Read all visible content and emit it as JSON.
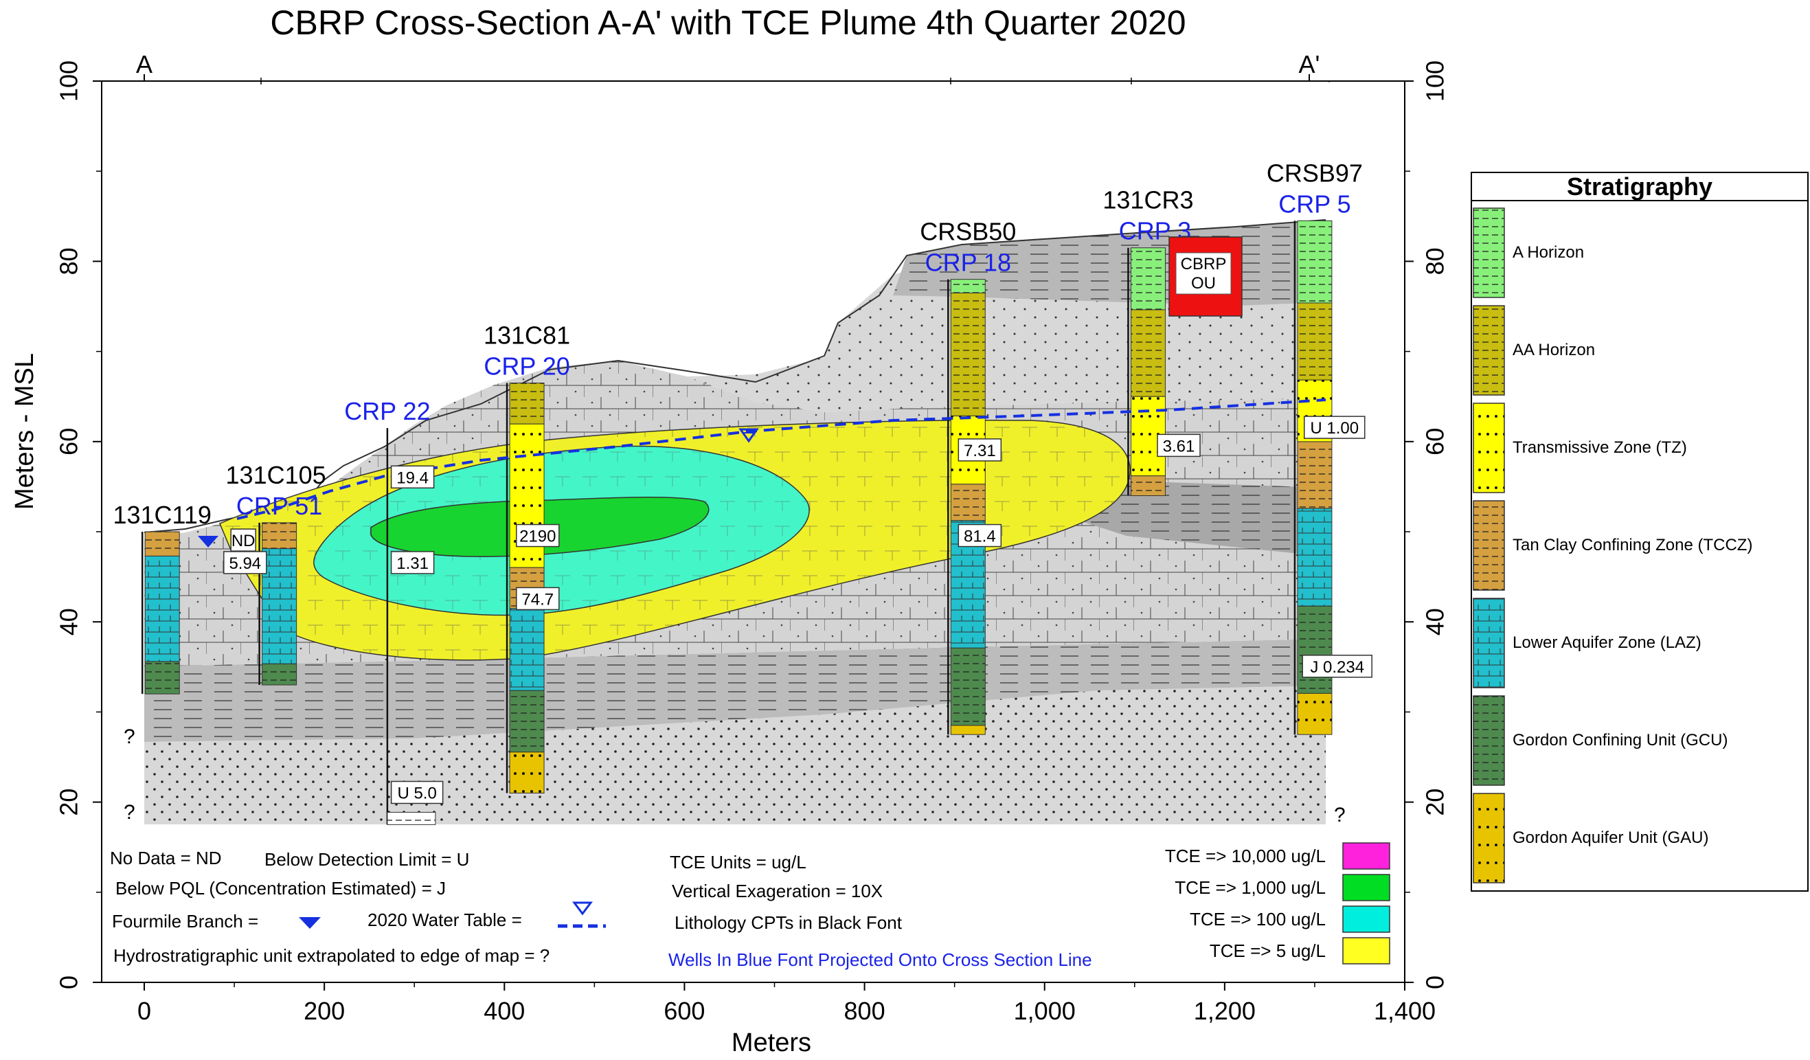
{
  "title": "CBRP Cross-Section A-A' with TCE Plume 4th Quarter 2020",
  "section_ends": {
    "left": "A",
    "right": "A'"
  },
  "axes": {
    "xlabel": "Meters",
    "ylabel": "Meters - MSL",
    "xlim": [
      0,
      1400
    ],
    "ylim": [
      0,
      100
    ],
    "xticks": [
      "0",
      "200",
      "400",
      "600",
      "800",
      "1,000",
      "1,200",
      "1,400"
    ],
    "yticks": [
      "0",
      "20",
      "40",
      "60",
      "80",
      "100"
    ],
    "right_yticks": [
      "0",
      "20",
      "40",
      "60",
      "80",
      "100"
    ]
  },
  "wells": [
    {
      "id": "131C119",
      "name": "131C119",
      "alt": "",
      "x": 20,
      "top": 50,
      "bottom": 32
    },
    {
      "id": "131C105",
      "name": "131C105",
      "alt": "CRP 51",
      "x": 150,
      "top": 51,
      "bottom": 33
    },
    {
      "id": "CRP22",
      "name": "",
      "alt": "CRP 22",
      "x": 270,
      "top": 61.5,
      "bottom": 17.5
    },
    {
      "id": "131C81",
      "name": "131C81",
      "alt": "CRP 20",
      "x": 425,
      "top": 66.5,
      "bottom": 21
    },
    {
      "id": "CRSB50",
      "name": "CRSB50",
      "alt": "CRP 18",
      "x": 915,
      "top": 78,
      "bottom": 27.5
    },
    {
      "id": "131CR3",
      "name": "131CR3",
      "alt": "CRP  3",
      "x": 1115,
      "top": 81.5,
      "bottom": 54
    },
    {
      "id": "CRSB97",
      "name": "CRSB97",
      "alt": "CRP  5",
      "x": 1300,
      "top": 84.5,
      "bottom": 27.5
    }
  ],
  "concentration_labels": [
    {
      "text": "ND",
      "x": 110,
      "y": 49
    },
    {
      "text": "5.94",
      "x": 112,
      "y": 46.5
    },
    {
      "text": "19.4",
      "x": 298,
      "y": 56
    },
    {
      "text": "1.31",
      "x": 298,
      "y": 46.5
    },
    {
      "text": "2190",
      "x": 437,
      "y": 49.5
    },
    {
      "text": "74.7",
      "x": 437,
      "y": 42.5
    },
    {
      "text": "7.31",
      "x": 928,
      "y": 59
    },
    {
      "text": "81.4",
      "x": 928,
      "y": 49.5
    },
    {
      "text": "3.61",
      "x": 1149,
      "y": 59.5
    },
    {
      "text": "U 1.00",
      "x": 1322,
      "y": 61.5
    },
    {
      "text": "J 0.234",
      "x": 1325,
      "y": 35
    },
    {
      "text": "U 5.0",
      "x": 303,
      "y": 21
    }
  ],
  "feature_labels": {
    "cbrp_ou": [
      "CBRP",
      "OU"
    ],
    "question_mark": "?"
  },
  "notes": {
    "left": [
      "No Data = ND",
      "Below Detection Limit = U",
      "Below PQL (Concentration Estimated) = J",
      "Fourmile Branch =",
      "2020 Water Table =",
      "Hydrostratigraphic unit extrapolated to edge of map = ?"
    ],
    "middle": [
      "TCE Units = ug/L",
      "Vertical Exageration = 10X",
      "Lithology CPTs in Black Font"
    ],
    "blue_note": "Wells In Blue Font Projected Onto Cross Section Line"
  },
  "tce_legend": [
    {
      "label": "TCE => 10,000 ug/L",
      "color": "#ff22dd"
    },
    {
      "label": "TCE => 1,000 ug/L",
      "color": "#00dd22"
    },
    {
      "label": "TCE => 100 ug/L",
      "color": "#00eedd"
    },
    {
      "label": "TCE => 5 ug/L",
      "color": "#ffff22"
    }
  ],
  "stratigraphy": {
    "title": "Stratigraphy",
    "units": [
      {
        "label": "A Horizon",
        "color": "#88f07a"
      },
      {
        "label": "AA Horizon",
        "color": "#c8bd10"
      },
      {
        "label": "Transmissive Zone (TZ)",
        "color": "#ffff00"
      },
      {
        "label": "Tan Clay Confining Zone (TCCZ)",
        "color": "#d4a040"
      },
      {
        "label": "Lower Aquifer Zone (LAZ)",
        "color": "#22bfcc"
      },
      {
        "label": "Gordon Confining Unit (GCU)",
        "color": "#4e8a4e"
      },
      {
        "label": "Gordon Aquifer Unit (GAU)",
        "color": "#e8c400"
      }
    ]
  },
  "colors": {
    "plume_5": "#f0f02a",
    "plume_100": "#44f5c8",
    "plume_1000": "#18d430",
    "water_table": "#1530e0",
    "well_label_blue": "#1a22e8",
    "cbrp_ou": "#ee1111"
  }
}
